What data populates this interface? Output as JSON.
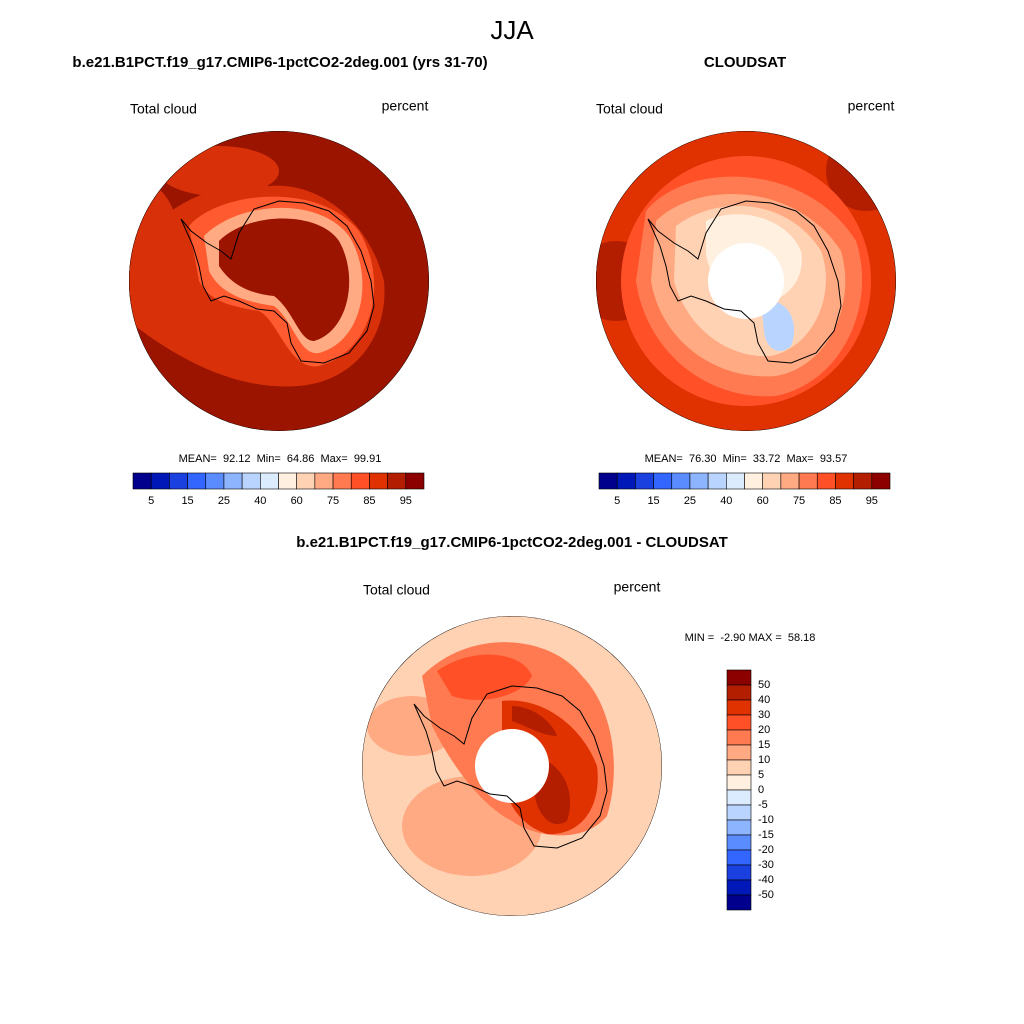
{
  "title": "JJA",
  "panels": [
    {
      "title": "b.e21.B1PCT.f19_g17.CMIP6-1pctCO2-2deg.001 (yrs 31-70)",
      "left_label": "Total cloud",
      "right_label": "percent",
      "stats": "MEAN=  92.12  Min=  64.86  Max=  99.91",
      "colorbar": {
        "labels": [
          5,
          15,
          25,
          40,
          60,
          75,
          85,
          95
        ],
        "colors": [
          "#00008c",
          "#0018b8",
          "#1a40e0",
          "#3366ff",
          "#5a8cff",
          "#8cb4ff",
          "#b8d4ff",
          "#dcecff",
          "#fff0e0",
          "#ffd2b4",
          "#ffaa82",
          "#ff7a50",
          "#ff5028",
          "#e03200",
          "#b41e00",
          "#8c0000"
        ]
      }
    },
    {
      "title": "CLOUDSAT",
      "left_label": "Total cloud",
      "right_label": "percent",
      "stats": "MEAN=  76.30  Min=  33.72  Max=  93.57",
      "colorbar": {
        "labels": [
          5,
          15,
          25,
          40,
          60,
          75,
          85,
          95
        ],
        "colors": [
          "#00008c",
          "#0018b8",
          "#1a40e0",
          "#3366ff",
          "#5a8cff",
          "#8cb4ff",
          "#b8d4ff",
          "#dcecff",
          "#fff0e0",
          "#ffd2b4",
          "#ffaa82",
          "#ff7a50",
          "#ff5028",
          "#e03200",
          "#b41e00",
          "#8c0000"
        ]
      }
    },
    {
      "title": "b.e21.B1PCT.f19_g17.CMIP6-1pctCO2-2deg.001 - CLOUDSAT",
      "left_label": "Total cloud",
      "right_label": "percent",
      "stats": "MIN =  -2.90 MAX =  58.18",
      "colorbar": {
        "labels": [
          50,
          40,
          30,
          20,
          15,
          10,
          5,
          0,
          -5,
          -10,
          -15,
          -20,
          -30,
          -40,
          -50
        ],
        "colors": [
          "#8c0000",
          "#b41e00",
          "#e03200",
          "#ff5028",
          "#ff7a50",
          "#ffaa82",
          "#ffd2b4",
          "#fff0e0",
          "#dcecff",
          "#b8d4ff",
          "#8cb4ff",
          "#5a8cff",
          "#3366ff",
          "#1a40e0",
          "#0018b8",
          "#00008c"
        ]
      }
    }
  ]
}
